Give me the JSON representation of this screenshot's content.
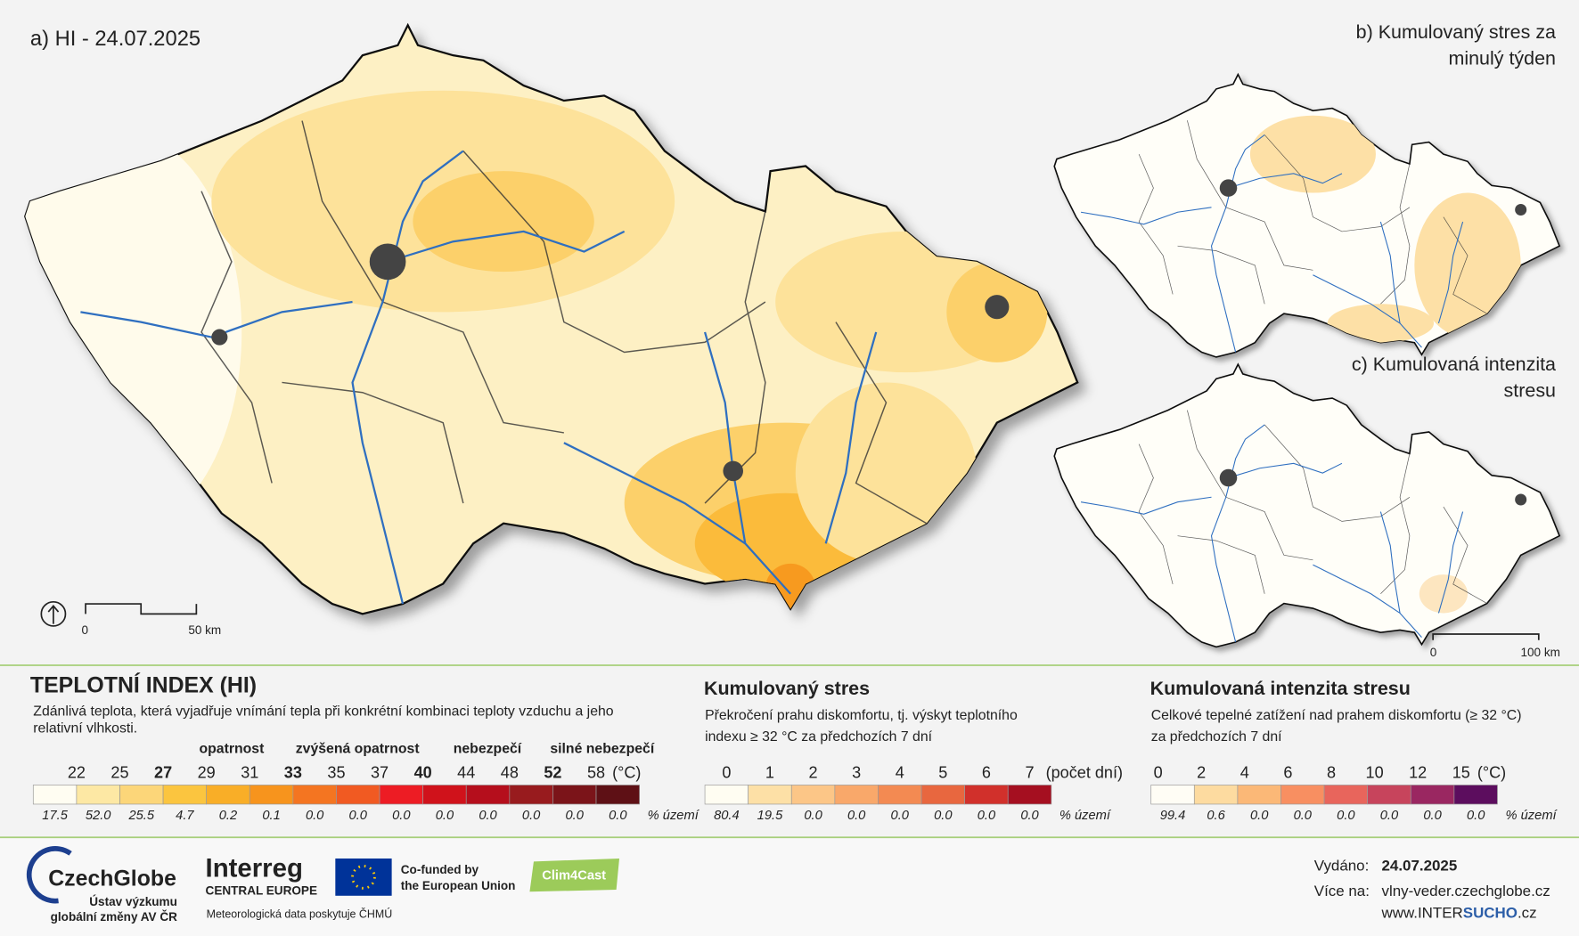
{
  "maps": {
    "hi": {
      "title": "a) HI - 24.07.2025",
      "scale_start": "0",
      "scale_end": "50 km"
    },
    "stress": {
      "title_lines": [
        "b) Kumulovaný stres za",
        "minulý týden"
      ]
    },
    "intensity": {
      "title_lines": [
        "c) Kumulovaná intenzita",
        "stresu"
      ],
      "scale_start": "0",
      "scale_end": "100 km"
    }
  },
  "legends": {
    "hi": {
      "title": "TEPLOTNÍ INDEX (HI)",
      "description_lines": [
        "Zdánlivá teplota, která vyjadřuje vnímání tepla při konkrétní kombinaci teploty vzduchu a jeho",
        "relativní vlhkosti."
      ],
      "levels": [
        "opatrnost",
        "zvýšená opatrnost",
        "nebezpečí",
        "silné nebezpečí"
      ],
      "ticks": [
        {
          "label": "22"
        },
        {
          "label": "25"
        },
        {
          "label": "27",
          "bold": true
        },
        {
          "label": "29"
        },
        {
          "label": "31"
        },
        {
          "label": "33",
          "bold": true
        },
        {
          "label": "35"
        },
        {
          "label": "37"
        },
        {
          "label": "40",
          "bold": true
        },
        {
          "label": "44"
        },
        {
          "label": "48"
        },
        {
          "label": "52",
          "bold": true
        },
        {
          "label": "58"
        }
      ],
      "unit": "(°C)",
      "colors": [
        "#fffdf2",
        "#fde8a4",
        "#fcd679",
        "#fbc53f",
        "#f9ae27",
        "#f7941d",
        "#f47521",
        "#f15a22",
        "#ed1c24",
        "#d0121b",
        "#b50e1c",
        "#981b1e",
        "#7b1419",
        "#5e1015"
      ],
      "shares": [
        "17.5",
        "52.0",
        "25.5",
        "4.7",
        "0.2",
        "0.1",
        "0.0",
        "0.0",
        "0.0",
        "0.0",
        "0.0",
        "0.0",
        "0.0",
        "0.0"
      ],
      "share_unit": "% území"
    },
    "stress": {
      "title": "Kumulovaný stres",
      "description_lines": [
        "Překročení prahu diskomfortu, tj. výskyt teplotního",
        "indexu ≥ 32 °C za předchozích 7 dní"
      ],
      "ticks": [
        "0",
        "1",
        "2",
        "3",
        "4",
        "5",
        "6",
        "7"
      ],
      "unit": "(počet dní)",
      "colors": [
        "#fffdf2",
        "#fde0a6",
        "#fcc687",
        "#f9a86a",
        "#f38a52",
        "#e8673f",
        "#d1302b",
        "#a50f20"
      ],
      "shares": [
        "80.4",
        "19.5",
        "0.0",
        "0.0",
        "0.0",
        "0.0",
        "0.0",
        "0.0"
      ],
      "share_unit": "% území"
    },
    "intensity": {
      "title": "Kumulovaná intenzita stresu",
      "description_lines": [
        "Celkové tepelné zatížení nad prahem diskomfortu (≥ 32 °C)",
        "za předchozích 7 dní"
      ],
      "ticks": [
        "0",
        "2",
        "4",
        "6",
        "8",
        "10",
        "12",
        "15"
      ],
      "unit": "(°C)",
      "colors": [
        "#fffdf5",
        "#fddba0",
        "#fbb877",
        "#f88f61",
        "#e8655c",
        "#c7445c",
        "#9a2761",
        "#5c0d5e"
      ],
      "shares": [
        "99.4",
        "0.6",
        "0.0",
        "0.0",
        "0.0",
        "0.0",
        "0.0",
        "0.0"
      ],
      "share_unit": "% území"
    }
  },
  "footer": {
    "czechglobe": {
      "name": "CzechGlobe",
      "lines": [
        "Ústav výzkumu",
        "globální změny AV ČR"
      ]
    },
    "interreg": {
      "name": "Interreg",
      "region": "CENTRAL EUROPE"
    },
    "eu": [
      "Co-funded by",
      "the European Union"
    ],
    "project": "Clim4Cast",
    "data_source": "Meteorologická data poskytuje ČHMÚ",
    "issued_label": "Vydáno:",
    "issued_date": "24.07.2025",
    "more_label": "Více na:",
    "website": "vlny-veder.czechglobe.cz",
    "intersucho": [
      "www.",
      "INTER",
      "SUCHO",
      ".cz"
    ]
  }
}
